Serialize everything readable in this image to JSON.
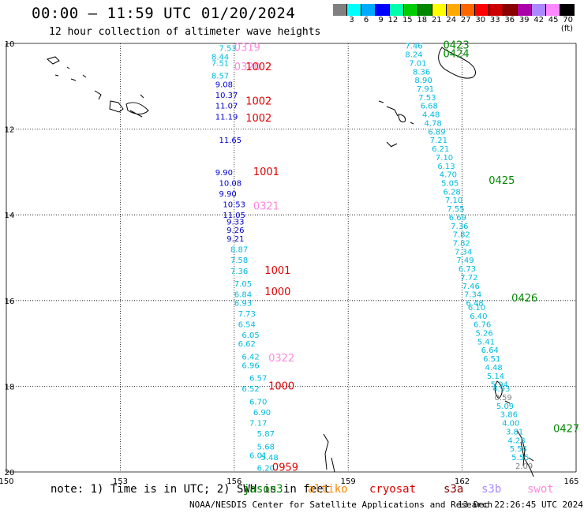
{
  "header": {
    "title": "00:00 – 11:59 UTC 01/20/2024",
    "subtitle": "12 hour collection of altimeter wave heights"
  },
  "legend": {
    "colors": [
      "#808080",
      "#00ffff",
      "#00aaff",
      "#0000ff",
      "#00ffaa",
      "#00cc00",
      "#008800",
      "#ffff00",
      "#ffaa00",
      "#ff6600",
      "#ff0000",
      "#cc0000",
      "#880000",
      "#aa00aa",
      "#aa88ff",
      "#ff88ff",
      "#000000"
    ],
    "labels": [
      "3",
      "6",
      "9",
      "12",
      "15",
      "18",
      "21",
      "24",
      "27",
      "30",
      "33",
      "36",
      "39",
      "42",
      "45",
      "70 (ft)"
    ]
  },
  "map": {
    "lon_ticks": [
      "150",
      "153",
      "156",
      "159",
      "162",
      "165"
    ],
    "lat_ticks": [
      "10",
      "12",
      "14",
      "16",
      "18",
      "20"
    ],
    "lon_range": [
      150,
      165
    ],
    "lat_range": [
      10,
      20
    ],
    "grid": true
  },
  "track_left": [
    {
      "t": "7.53",
      "lon": 155.6,
      "lat": 10.1,
      "c": "#00bbdd"
    },
    {
      "t": "8.44",
      "lon": 155.4,
      "lat": 10.3,
      "c": "#00bbdd"
    },
    {
      "t": "7.51",
      "lon": 155.4,
      "lat": 10.45,
      "c": "#00bbdd"
    },
    {
      "t": "8.57",
      "lon": 155.4,
      "lat": 10.75,
      "c": "#00bbdd"
    },
    {
      "t": "9.08",
      "lon": 155.5,
      "lat": 10.95,
      "c": "#0000cc"
    },
    {
      "t": "10.37",
      "lon": 155.5,
      "lat": 11.2,
      "c": "#0000cc"
    },
    {
      "t": "11.07",
      "lon": 155.5,
      "lat": 11.45,
      "c": "#0000cc"
    },
    {
      "t": "11.19",
      "lon": 155.5,
      "lat": 11.7,
      "c": "#0000cc"
    },
    {
      "t": "11.65",
      "lon": 155.6,
      "lat": 12.25,
      "c": "#0000cc"
    },
    {
      "t": "9.90",
      "lon": 155.5,
      "lat": 13.0,
      "c": "#0000cc"
    },
    {
      "t": "10.08",
      "lon": 155.6,
      "lat": 13.25,
      "c": "#0000cc"
    },
    {
      "t": "9.90",
      "lon": 155.6,
      "lat": 13.5,
      "c": "#0000cc"
    },
    {
      "t": "10.53",
      "lon": 155.7,
      "lat": 13.75,
      "c": "#0000cc"
    },
    {
      "t": "11.05",
      "lon": 155.7,
      "lat": 14.0,
      "c": "#0000cc"
    },
    {
      "t": "9.33",
      "lon": 155.8,
      "lat": 14.15,
      "c": "#0000cc"
    },
    {
      "t": "9.26",
      "lon": 155.8,
      "lat": 14.35,
      "c": "#0000cc"
    },
    {
      "t": "9.21",
      "lon": 155.8,
      "lat": 14.55,
      "c": "#0000cc"
    },
    {
      "t": "8.87",
      "lon": 155.9,
      "lat": 14.8,
      "c": "#00bbdd"
    },
    {
      "t": "7.58",
      "lon": 155.9,
      "lat": 15.05,
      "c": "#00bbdd"
    },
    {
      "t": "7.36",
      "lon": 155.9,
      "lat": 15.3,
      "c": "#00bbdd"
    },
    {
      "t": "7.05",
      "lon": 156.0,
      "lat": 15.6,
      "c": "#00bbdd"
    },
    {
      "t": "6.84",
      "lon": 156.0,
      "lat": 15.85,
      "c": "#00bbdd"
    },
    {
      "t": "6.93",
      "lon": 156.0,
      "lat": 16.05,
      "c": "#00bbdd"
    },
    {
      "t": "7.73",
      "lon": 156.1,
      "lat": 16.3,
      "c": "#00bbdd"
    },
    {
      "t": "6.54",
      "lon": 156.1,
      "lat": 16.55,
      "c": "#00bbdd"
    },
    {
      "t": "6.05",
      "lon": 156.2,
      "lat": 16.8,
      "c": "#00bbdd"
    },
    {
      "t": "6.62",
      "lon": 156.1,
      "lat": 17.0,
      "c": "#00bbdd"
    },
    {
      "t": "6.42",
      "lon": 156.2,
      "lat": 17.3,
      "c": "#00bbdd"
    },
    {
      "t": "6.96",
      "lon": 156.2,
      "lat": 17.5,
      "c": "#00bbdd"
    },
    {
      "t": "6.57",
      "lon": 156.4,
      "lat": 17.8,
      "c": "#00bbdd"
    },
    {
      "t": "6.52",
      "lon": 156.2,
      "lat": 18.05,
      "c": "#00bbdd"
    },
    {
      "t": "6.70",
      "lon": 156.4,
      "lat": 18.35,
      "c": "#00bbdd"
    },
    {
      "t": "6.90",
      "lon": 156.5,
      "lat": 18.6,
      "c": "#00bbdd"
    },
    {
      "t": "7.17",
      "lon": 156.4,
      "lat": 18.85,
      "c": "#00bbdd"
    },
    {
      "t": "5.87",
      "lon": 156.6,
      "lat": 19.1,
      "c": "#00bbdd"
    },
    {
      "t": "5.68",
      "lon": 156.6,
      "lat": 19.4,
      "c": "#00bbdd"
    },
    {
      "t": "6.01",
      "lon": 156.4,
      "lat": 19.6,
      "c": "#00bbdd"
    },
    {
      "t": "5.48",
      "lon": 156.7,
      "lat": 19.65,
      "c": "#00bbdd"
    },
    {
      "t": "6.20",
      "lon": 156.6,
      "lat": 19.9,
      "c": "#00bbdd"
    }
  ],
  "track_right": [
    {
      "t": "7.46",
      "lon": 160.5,
      "lat": 10.05,
      "c": "#00bbdd"
    },
    {
      "t": "8.24",
      "lon": 160.5,
      "lat": 10.25,
      "c": "#00bbdd"
    },
    {
      "t": "7.01",
      "lon": 160.6,
      "lat": 10.45,
      "c": "#00bbdd"
    },
    {
      "t": "8.36",
      "lon": 160.7,
      "lat": 10.65,
      "c": "#00bbdd"
    },
    {
      "t": "8.90",
      "lon": 160.75,
      "lat": 10.85,
      "c": "#00bbdd"
    },
    {
      "t": "7.91",
      "lon": 160.8,
      "lat": 11.05,
      "c": "#00bbdd"
    },
    {
      "t": "7.53",
      "lon": 160.85,
      "lat": 11.25,
      "c": "#00bbdd"
    },
    {
      "t": "6.68",
      "lon": 160.9,
      "lat": 11.45,
      "c": "#00bbdd"
    },
    {
      "t": "4.48",
      "lon": 160.95,
      "lat": 11.65,
      "c": "#00bbdd"
    },
    {
      "t": "4.78",
      "lon": 161.0,
      "lat": 11.85,
      "c": "#00bbdd"
    },
    {
      "t": "6.89",
      "lon": 161.1,
      "lat": 12.05,
      "c": "#00bbdd"
    },
    {
      "t": "7.21",
      "lon": 161.15,
      "lat": 12.25,
      "c": "#00bbdd"
    },
    {
      "t": "6.21",
      "lon": 161.2,
      "lat": 12.45,
      "c": "#00bbdd"
    },
    {
      "t": "7.10",
      "lon": 161.3,
      "lat": 12.65,
      "c": "#00bbdd"
    },
    {
      "t": "6.13",
      "lon": 161.35,
      "lat": 12.85,
      "c": "#00bbdd"
    },
    {
      "t": "4.70",
      "lon": 161.4,
      "lat": 13.05,
      "c": "#00bbdd"
    },
    {
      "t": "5.05",
      "lon": 161.45,
      "lat": 13.25,
      "c": "#00bbdd"
    },
    {
      "t": "6.28",
      "lon": 161.5,
      "lat": 13.45,
      "c": "#00bbdd"
    },
    {
      "t": "7.10",
      "lon": 161.55,
      "lat": 13.65,
      "c": "#00bbdd"
    },
    {
      "t": "7.55",
      "lon": 161.6,
      "lat": 13.85,
      "c": "#00bbdd"
    },
    {
      "t": "6.69",
      "lon": 161.65,
      "lat": 14.05,
      "c": "#00bbdd"
    },
    {
      "t": "7.36",
      "lon": 161.7,
      "lat": 14.25,
      "c": "#00bbdd"
    },
    {
      "t": "7.82",
      "lon": 161.75,
      "lat": 14.45,
      "c": "#00bbdd"
    },
    {
      "t": "7.82",
      "lon": 161.75,
      "lat": 14.65,
      "c": "#00bbdd"
    },
    {
      "t": "7.34",
      "lon": 161.8,
      "lat": 14.85,
      "c": "#00bbdd"
    },
    {
      "t": "7.49",
      "lon": 161.85,
      "lat": 15.05,
      "c": "#00bbdd"
    },
    {
      "t": "6.73",
      "lon": 161.9,
      "lat": 15.25,
      "c": "#00bbdd"
    },
    {
      "t": "7.72",
      "lon": 161.95,
      "lat": 15.45,
      "c": "#00bbdd"
    },
    {
      "t": "7.46",
      "lon": 162.0,
      "lat": 15.65,
      "c": "#00bbdd"
    },
    {
      "t": "7.34",
      "lon": 162.05,
      "lat": 15.85,
      "c": "#00bbdd"
    },
    {
      "t": "6.48",
      "lon": 162.1,
      "lat": 16.05,
      "c": "#00bbdd"
    },
    {
      "t": "6.10",
      "lon": 162.15,
      "lat": 16.15,
      "c": "#00bbdd"
    },
    {
      "t": "6.40",
      "lon": 162.2,
      "lat": 16.35,
      "c": "#00bbdd"
    },
    {
      "t": "6.76",
      "lon": 162.3,
      "lat": 16.55,
      "c": "#00bbdd"
    },
    {
      "t": "5.26",
      "lon": 162.35,
      "lat": 16.75,
      "c": "#00bbdd"
    },
    {
      "t": "5.41",
      "lon": 162.4,
      "lat": 16.95,
      "c": "#00bbdd"
    },
    {
      "t": "6.64",
      "lon": 162.5,
      "lat": 17.15,
      "c": "#00bbdd"
    },
    {
      "t": "6.51",
      "lon": 162.55,
      "lat": 17.35,
      "c": "#00bbdd"
    },
    {
      "t": "4.48",
      "lon": 162.6,
      "lat": 17.55,
      "c": "#00bbdd"
    },
    {
      "t": "5.14",
      "lon": 162.65,
      "lat": 17.75,
      "c": "#00bbdd"
    },
    {
      "t": "5.94",
      "lon": 162.75,
      "lat": 17.95,
      "c": "#00bbdd"
    },
    {
      "t": "4.93",
      "lon": 162.8,
      "lat": 18.05,
      "c": "#00bbdd"
    },
    {
      "t": "0.59",
      "lon": 162.85,
      "lat": 18.25,
      "c": "#808080"
    },
    {
      "t": "5.09",
      "lon": 162.9,
      "lat": 18.45,
      "c": "#00bbdd"
    },
    {
      "t": "3.86",
      "lon": 163.0,
      "lat": 18.65,
      "c": "#00bbdd"
    },
    {
      "t": "4.00",
      "lon": 163.05,
      "lat": 18.85,
      "c": "#00bbdd"
    },
    {
      "t": "3.81",
      "lon": 163.15,
      "lat": 19.05,
      "c": "#00bbdd"
    },
    {
      "t": "4.28",
      "lon": 163.2,
      "lat": 19.25,
      "c": "#00bbdd"
    },
    {
      "t": "5.54",
      "lon": 163.25,
      "lat": 19.45,
      "c": "#00bbdd"
    },
    {
      "t": "5.55",
      "lon": 163.3,
      "lat": 19.65,
      "c": "#00bbdd"
    },
    {
      "t": "2.09",
      "lon": 163.4,
      "lat": 19.85,
      "c": "#808080"
    }
  ],
  "time_labels": [
    {
      "t": "0319",
      "lon": 156.0,
      "lat": 10.1,
      "c": "#ff88dd"
    },
    {
      "t": "0320",
      "lon": 156.0,
      "lat": 10.55,
      "c": "#ff88dd"
    },
    {
      "t": "1002",
      "lon": 156.3,
      "lat": 10.55,
      "c": "#dd0000"
    },
    {
      "t": "1002",
      "lon": 156.3,
      "lat": 11.35,
      "c": "#dd0000"
    },
    {
      "t": "1002",
      "lon": 156.3,
      "lat": 11.75,
      "c": "#dd0000"
    },
    {
      "t": "1001",
      "lon": 156.5,
      "lat": 13.0,
      "c": "#dd0000"
    },
    {
      "t": "0321",
      "lon": 156.5,
      "lat": 13.8,
      "c": "#ff88dd"
    },
    {
      "t": "1001",
      "lon": 156.8,
      "lat": 15.3,
      "c": "#dd0000"
    },
    {
      "t": "1000",
      "lon": 156.8,
      "lat": 15.8,
      "c": "#dd0000"
    },
    {
      "t": "0322",
      "lon": 156.9,
      "lat": 17.35,
      "c": "#ff88dd"
    },
    {
      "t": "1000",
      "lon": 156.9,
      "lat": 18.0,
      "c": "#dd0000"
    },
    {
      "t": "0959",
      "lon": 157.0,
      "lat": 19.9,
      "c": "#dd0000"
    },
    {
      "t": "0423",
      "lon": 161.5,
      "lat": 10.05,
      "c": "#008800"
    },
    {
      "t": "0424",
      "lon": 161.5,
      "lat": 10.25,
      "c": "#008800"
    },
    {
      "t": "0425",
      "lon": 162.7,
      "lat": 13.2,
      "c": "#008800"
    },
    {
      "t": "0426",
      "lon": 163.3,
      "lat": 15.95,
      "c": "#008800"
    },
    {
      "t": "0427",
      "lon": 164.4,
      "lat": 19.0,
      "c": "#008800"
    }
  ],
  "footer": {
    "note": "note: 1) Time is in UTC; 2) SWH is in feet",
    "satellites": [
      {
        "name": "jason3",
        "color": "#008800"
      },
      {
        "name": "altiko",
        "color": "#ff8800"
      },
      {
        "name": "cryosat",
        "color": "#dd0000"
      },
      {
        "name": "s3a",
        "color": "#880000"
      },
      {
        "name": "s3b",
        "color": "#aa88ff"
      },
      {
        "name": "swot",
        "color": "#ff88dd"
      }
    ],
    "credit": "NOAA/NESDIS Center for Satellite Applications and Research",
    "generated": "13 Dec 22:26:45 UTC 2024"
  }
}
